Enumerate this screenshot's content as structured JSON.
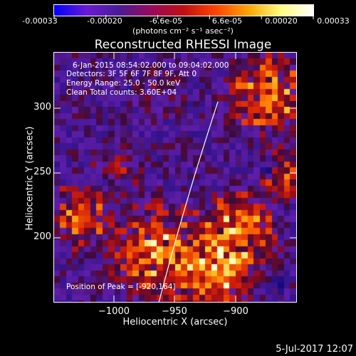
{
  "colorbar": {
    "ticks": [
      "-0.00033",
      "-0.00020",
      "-6.6e-05",
      "6.6e-05",
      "0.00020",
      "0.00033"
    ],
    "units": "(photons cm⁻² s⁻¹ asec⁻²)",
    "colors": [
      "#0000ff",
      "#6a1bd4",
      "#4b1b96",
      "#9a0a5a",
      "#c01010",
      "#ff4500",
      "#ffa500",
      "#ffff80",
      "#ffffff"
    ]
  },
  "plot": {
    "title": "Reconstructed RHESSI Image",
    "info": {
      "time_range": "6-Jan-2015 08:54:02.000 to 09:04:02.000",
      "detectors": "Detectors: 3F 5F 6F 7F 8F 9F, Att 0",
      "energy": "Energy Range: 25.0 - 50.0 keV",
      "clean": "Clean     Total counts: 3.60E+04"
    },
    "peak": "Position of Peak = [-920,164]",
    "xaxis": {
      "title": "Heliocentric X (arcsec)",
      "ticks": [
        "−1000",
        "−950",
        "−900"
      ]
    },
    "yaxis": {
      "title": "Heliocentric Y (arcsec)",
      "ticks": [
        "300",
        "250",
        "200"
      ]
    }
  },
  "footer": {
    "date": "5-Jul-2017 12:07"
  }
}
